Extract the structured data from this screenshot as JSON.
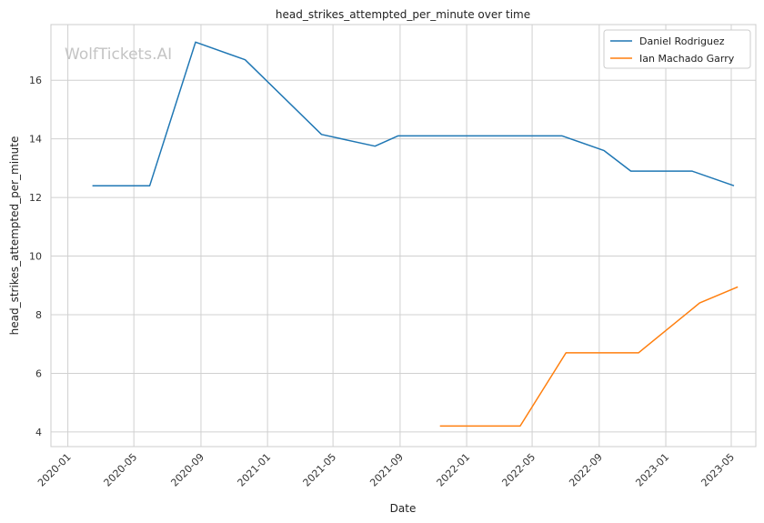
{
  "chart_data": {
    "type": "line",
    "title": "head_strikes_attempted_per_minute over time",
    "xlabel": "Date",
    "ylabel": "head_strikes_attempted_per_minute",
    "watermark": "WolfTickets.AI",
    "xlim": [
      "2019-12-01",
      "2023-06-15"
    ],
    "ylim": [
      3.5,
      17.9
    ],
    "x_ticks": [
      "2020-01",
      "2020-05",
      "2020-09",
      "2021-01",
      "2021-05",
      "2021-09",
      "2022-01",
      "2022-05",
      "2022-09",
      "2023-01",
      "2023-05"
    ],
    "y_ticks": [
      4,
      6,
      8,
      10,
      12,
      14,
      16
    ],
    "grid": true,
    "legend_position": "top-right",
    "colors": {
      "Daniel Rodriguez": "#1f77b4",
      "Ian Machado Garry": "#ff7f0e"
    },
    "series": [
      {
        "name": "Daniel Rodriguez",
        "x": [
          "2020-02-15",
          "2020-05-30",
          "2020-08-22",
          "2020-11-21",
          "2021-04-10",
          "2021-07-17",
          "2021-08-28",
          "2022-06-25",
          "2022-09-10",
          "2022-10-29",
          "2023-02-18",
          "2023-05-06"
        ],
        "y": [
          12.4,
          12.4,
          17.3,
          16.7,
          14.15,
          13.75,
          14.1,
          14.1,
          13.6,
          12.9,
          12.9,
          12.4
        ]
      },
      {
        "name": "Ian Machado Garry",
        "x": [
          "2021-11-13",
          "2022-04-09",
          "2022-07-02",
          "2022-11-12",
          "2023-03-04",
          "2023-05-13"
        ],
        "y": [
          4.2,
          4.2,
          6.7,
          6.7,
          8.4,
          8.95
        ]
      }
    ]
  }
}
